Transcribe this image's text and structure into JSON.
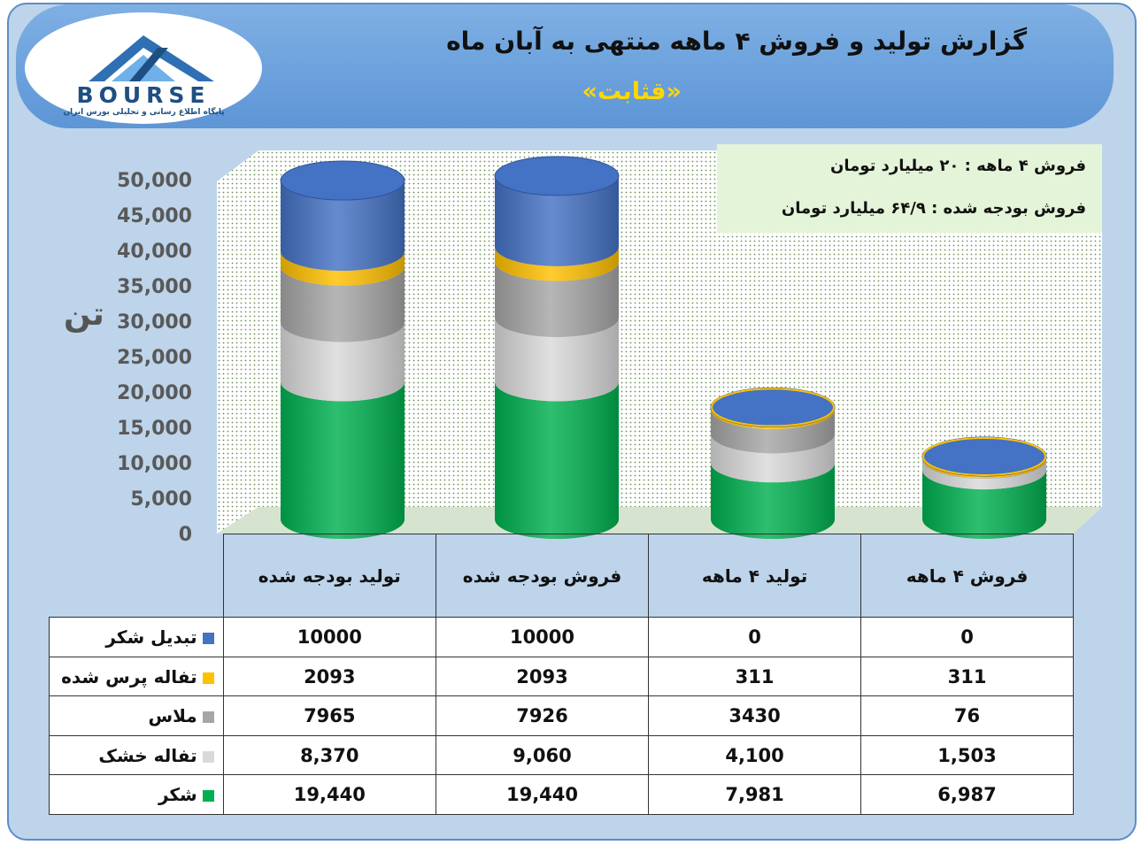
{
  "header": {
    "title": "گزارش تولید و فروش ۴ ماهه منتهی به آبان ماه",
    "subtitle": "«قثابت»"
  },
  "logo": {
    "word": "BOURSE",
    "tagline": "پایگاه اطلاع رسانی و تحلیلی بورس ایران"
  },
  "note": {
    "line1": "فروش ۴ ماهه : ۲۰ میلیارد تومان",
    "line2": "فروش بودجه شده : ۶۴/۹ میلیارد تومان"
  },
  "unit_label": "تن",
  "colors": {
    "shekar": "#00b050",
    "tofale_khoshk": "#d9d9d9",
    "molas": "#a6a6a6",
    "tofale_pers": "#ffc000",
    "tabdil": "#4472c4"
  },
  "chart_data": {
    "type": "bar",
    "stacked": true,
    "ylim": [
      0,
      50000
    ],
    "yticks": [
      "0",
      "5,000",
      "10,000",
      "15,000",
      "20,000",
      "25,000",
      "30,000",
      "35,000",
      "40,000",
      "45,000",
      "50,000"
    ],
    "categories": [
      "تولید بودجه شده",
      "فروش بودجه شده",
      "تولید ۴ ماهه",
      "فروش ۴ ماهه"
    ],
    "series": [
      {
        "name": "شکر",
        "color": "#00b050",
        "values": [
          19440,
          19440,
          7981,
          6987
        ],
        "labels": [
          "19,440",
          "19,440",
          "7,981",
          "6,987"
        ]
      },
      {
        "name": "تفاله خشک",
        "color": "#d9d9d9",
        "values": [
          8370,
          9060,
          4100,
          1503
        ],
        "labels": [
          "8,370",
          "9,060",
          "4,100",
          "1,503"
        ]
      },
      {
        "name": "ملاس",
        "color": "#a6a6a6",
        "values": [
          7965,
          7926,
          3430,
          76
        ],
        "labels": [
          "7965",
          "7926",
          "3430",
          "76"
        ]
      },
      {
        "name": "تفاله پرس شده",
        "color": "#ffc000",
        "values": [
          2093,
          2093,
          311,
          311
        ],
        "labels": [
          "2093",
          "2093",
          "311",
          "311"
        ]
      },
      {
        "name": "تبدیل شکر",
        "color": "#4472c4",
        "values": [
          10000,
          10000,
          0,
          0
        ],
        "labels": [
          "10000",
          "10000",
          "0",
          "0"
        ]
      }
    ],
    "table_row_order": [
      4,
      3,
      2,
      1,
      0
    ]
  }
}
